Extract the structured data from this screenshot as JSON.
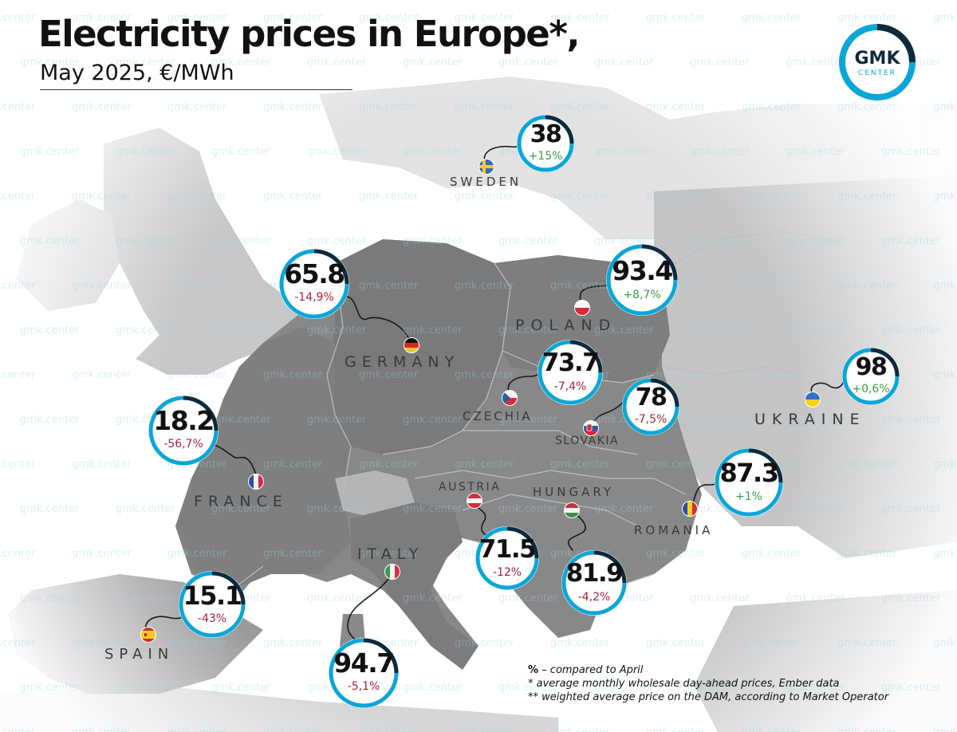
{
  "title": "Electricity prices in Europe*,",
  "subtitle": "May 2025, €/MWh",
  "watermark": "gmk.center",
  "logo": {
    "line1": "GMK",
    "line2": "CENTER"
  },
  "colors": {
    "accent": "#0aa6d8",
    "ring_dark": "#0e2a3a",
    "up": "#3a9d44",
    "down": "#a4243b"
  },
  "countries": {
    "sweden": {
      "label": "SWEDEN",
      "price": "38",
      "change": "+15%",
      "trend": "up",
      "flag": "sweden-flag"
    },
    "germany": {
      "label": "GERMANY",
      "price": "65.8",
      "change": "-14,9%",
      "trend": "down",
      "flag": "germany-flag"
    },
    "poland": {
      "label": "POLAND",
      "price": "93.4",
      "change": "+8,7%",
      "trend": "up",
      "flag": "poland-flag"
    },
    "czechia": {
      "label": "CZECHIA",
      "price": "73.7",
      "change": "-7,4%",
      "trend": "down",
      "flag": "czechia-flag"
    },
    "slovakia": {
      "label": "SLOVAKIA",
      "price": "78",
      "change": "-7,5%",
      "trend": "down",
      "flag": "slovakia-flag"
    },
    "ukraine": {
      "label": "UKRAINE",
      "price": "98",
      "change": "+0,6%",
      "trend": "up",
      "flag": "ukraine-flag"
    },
    "france": {
      "label": "FRANCE",
      "price": "18.2",
      "change": "-56,7%",
      "trend": "down",
      "flag": "france-flag"
    },
    "romania": {
      "label": "ROMANIA",
      "price": "87.3",
      "change": "+1%",
      "trend": "up",
      "flag": "romania-flag"
    },
    "austria": {
      "label": "AUSTRIA",
      "price": "71.5",
      "change": "-12%",
      "trend": "down",
      "flag": "austria-flag"
    },
    "hungary": {
      "label": "HUNGARY",
      "price": "81.9",
      "change": "-4,2%",
      "trend": "down",
      "flag": "hungary-flag"
    },
    "italy": {
      "label": "ITALY",
      "price": "94.7",
      "change": "-5,1%",
      "trend": "down",
      "flag": "italy-flag"
    },
    "spain": {
      "label": "SPAIN",
      "price": "15.1",
      "change": "-43%",
      "trend": "down",
      "flag": "spain-flag"
    }
  },
  "notes": {
    "n1_mark": "%",
    "n1_text": " – compared to April",
    "n2": "* average monthly wholesale day-ahead prices, Ember data",
    "n3": "** weighted average price on the DAM, according to Market Operator"
  }
}
